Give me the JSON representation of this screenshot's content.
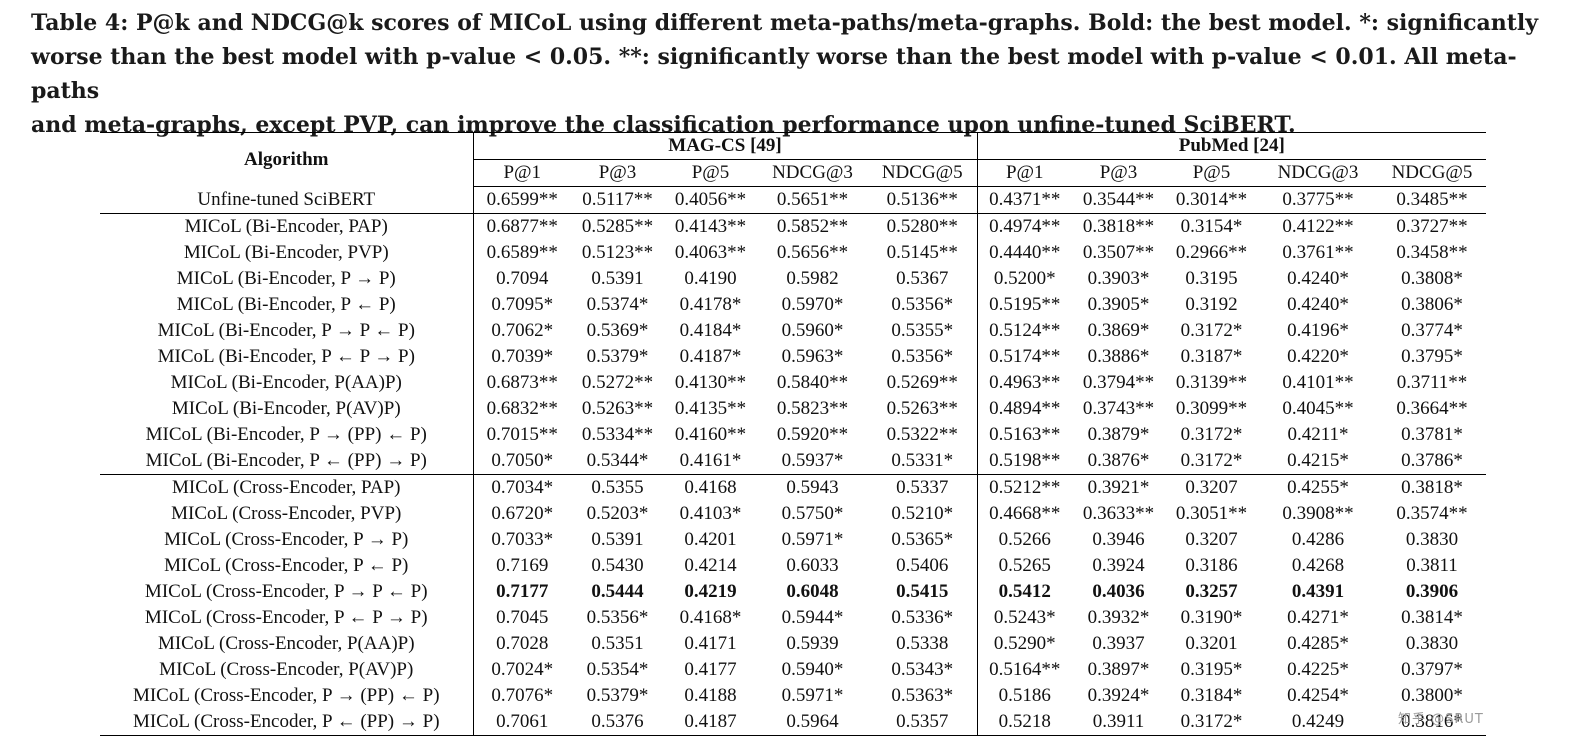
{
  "caption": {
    "line1": "Table 4: P@k and NDCG@k scores of MICoL using different meta-paths/meta-graphs. Bold: the best model. *: significantly",
    "line2": "worse than the best model with p-value < 0.05. **: significantly worse than the best model with p-value < 0.01. All meta-paths",
    "line3": "and meta-graphs, except PVP, can improve the classification performance upon unfine-tuned SciBERT."
  },
  "table": {
    "algorithm_header": "Algorithm",
    "groups": [
      "MAG-CS [49]",
      "PubMed [24]"
    ],
    "metrics": [
      "P@1",
      "P@3",
      "P@5",
      "NDCG@3",
      "NDCG@5"
    ],
    "baseline": {
      "name": "Unfine-tuned SciBERT",
      "values": [
        "0.6599**",
        "0.5117**",
        "0.4056**",
        "0.5651**",
        "0.5136**",
        "0.4371**",
        "0.3544**",
        "0.3014**",
        "0.3775**",
        "0.3485**"
      ]
    },
    "bi_rows": [
      {
        "name": "MICoL (Bi-Encoder, PAP)",
        "values": [
          "0.6877**",
          "0.5285**",
          "0.4143**",
          "0.5852**",
          "0.5280**",
          "0.4974**",
          "0.3818**",
          "0.3154*",
          "0.4122**",
          "0.3727**"
        ]
      },
      {
        "name": "MICoL (Bi-Encoder, PVP)",
        "values": [
          "0.6589**",
          "0.5123**",
          "0.4063**",
          "0.5656**",
          "0.5145**",
          "0.4440**",
          "0.3507**",
          "0.2966**",
          "0.3761**",
          "0.3458**"
        ]
      },
      {
        "name": "MICoL (Bi-Encoder, P → P)",
        "values": [
          "0.7094",
          "0.5391",
          "0.4190",
          "0.5982",
          "0.5367",
          "0.5200*",
          "0.3903*",
          "0.3195",
          "0.4240*",
          "0.3808*"
        ]
      },
      {
        "name": "MICoL (Bi-Encoder, P ← P)",
        "values": [
          "0.7095*",
          "0.5374*",
          "0.4178*",
          "0.5970*",
          "0.5356*",
          "0.5195**",
          "0.3905*",
          "0.3192",
          "0.4240*",
          "0.3806*"
        ]
      },
      {
        "name": "MICoL (Bi-Encoder, P → P ← P)",
        "values": [
          "0.7062*",
          "0.5369*",
          "0.4184*",
          "0.5960*",
          "0.5355*",
          "0.5124**",
          "0.3869*",
          "0.3172*",
          "0.4196*",
          "0.3774*"
        ]
      },
      {
        "name": "MICoL (Bi-Encoder, P ← P → P)",
        "values": [
          "0.7039*",
          "0.5379*",
          "0.4187*",
          "0.5963*",
          "0.5356*",
          "0.5174**",
          "0.3886*",
          "0.3187*",
          "0.4220*",
          "0.3795*"
        ]
      },
      {
        "name": "MICoL (Bi-Encoder, P(AA)P)",
        "values": [
          "0.6873**",
          "0.5272**",
          "0.4130**",
          "0.5840**",
          "0.5269**",
          "0.4963**",
          "0.3794**",
          "0.3139**",
          "0.4101**",
          "0.3711**"
        ]
      },
      {
        "name": "MICoL (Bi-Encoder, P(AV)P)",
        "values": [
          "0.6832**",
          "0.5263**",
          "0.4135**",
          "0.5823**",
          "0.5263**",
          "0.4894**",
          "0.3743**",
          "0.3099**",
          "0.4045**",
          "0.3664**"
        ]
      },
      {
        "name": "MICoL (Bi-Encoder, P → (PP) ← P)",
        "values": [
          "0.7015**",
          "0.5334**",
          "0.4160**",
          "0.5920**",
          "0.5322**",
          "0.5163**",
          "0.3879*",
          "0.3172*",
          "0.4211*",
          "0.3781*"
        ]
      },
      {
        "name": "MICoL (Bi-Encoder, P ← (PP) → P)",
        "values": [
          "0.7050*",
          "0.5344*",
          "0.4161*",
          "0.5937*",
          "0.5331*",
          "0.5198**",
          "0.3876*",
          "0.3172*",
          "0.4215*",
          "0.3786*"
        ]
      }
    ],
    "cross_rows": [
      {
        "name": "MICoL (Cross-Encoder, PAP)",
        "values": [
          "0.7034*",
          "0.5355",
          "0.4168",
          "0.5943",
          "0.5337",
          "0.5212**",
          "0.3921*",
          "0.3207",
          "0.4255*",
          "0.3818*"
        ]
      },
      {
        "name": "MICoL (Cross-Encoder, PVP)",
        "values": [
          "0.6720*",
          "0.5203*",
          "0.4103*",
          "0.5750*",
          "0.5210*",
          "0.4668**",
          "0.3633**",
          "0.3051**",
          "0.3908**",
          "0.3574**"
        ]
      },
      {
        "name": "MICoL (Cross-Encoder, P → P)",
        "values": [
          "0.7033*",
          "0.5391",
          "0.4201",
          "0.5971*",
          "0.5365*",
          "0.5266",
          "0.3946",
          "0.3207",
          "0.4286",
          "0.3830"
        ]
      },
      {
        "name": "MICoL (Cross-Encoder, P ← P)",
        "values": [
          "0.7169",
          "0.5430",
          "0.4214",
          "0.6033",
          "0.5406",
          "0.5265",
          "0.3924",
          "0.3186",
          "0.4268",
          "0.3811"
        ]
      },
      {
        "name": "MICoL (Cross-Encoder, P → P ← P)",
        "values": [
          "0.7177",
          "0.5444",
          "0.4219",
          "0.6048",
          "0.5415",
          "0.5412",
          "0.4036",
          "0.3257",
          "0.4391",
          "0.3906"
        ]
      },
      {
        "name": "MICoL (Cross-Encoder, P ← P → P)",
        "values": [
          "0.7045",
          "0.5356*",
          "0.4168*",
          "0.5944*",
          "0.5336*",
          "0.5243*",
          "0.3932*",
          "0.3190*",
          "0.4271*",
          "0.3814*"
        ]
      },
      {
        "name": "MICoL (Cross-Encoder, P(AA)P)",
        "values": [
          "0.7028",
          "0.5351",
          "0.4171",
          "0.5939",
          "0.5338",
          "0.5290*",
          "0.3937",
          "0.3201",
          "0.4285*",
          "0.3830"
        ]
      },
      {
        "name": "MICoL (Cross-Encoder, P(AV)P)",
        "values": [
          "0.7024*",
          "0.5354*",
          "0.4177",
          "0.5940*",
          "0.5343*",
          "0.5164**",
          "0.3897*",
          "0.3195*",
          "0.4225*",
          "0.3797*"
        ]
      },
      {
        "name": "MICoL (Cross-Encoder, P → (PP) ← P)",
        "values": [
          "0.7076*",
          "0.5379*",
          "0.4188",
          "0.5971*",
          "0.5363*",
          "0.5186",
          "0.3924*",
          "0.3184*",
          "0.4254*",
          "0.3800*"
        ]
      },
      {
        "name": "MICoL (Cross-Encoder, P ← (PP) → P)",
        "values": [
          "0.7061",
          "0.5376",
          "0.4187",
          "0.5964",
          "0.5357",
          "0.5218",
          "0.3911",
          "0.3172*",
          "0.4249",
          "0.3816*"
        ]
      }
    ],
    "best_row_index": 4
  },
  "watermark": "知乎 @SRUT"
}
